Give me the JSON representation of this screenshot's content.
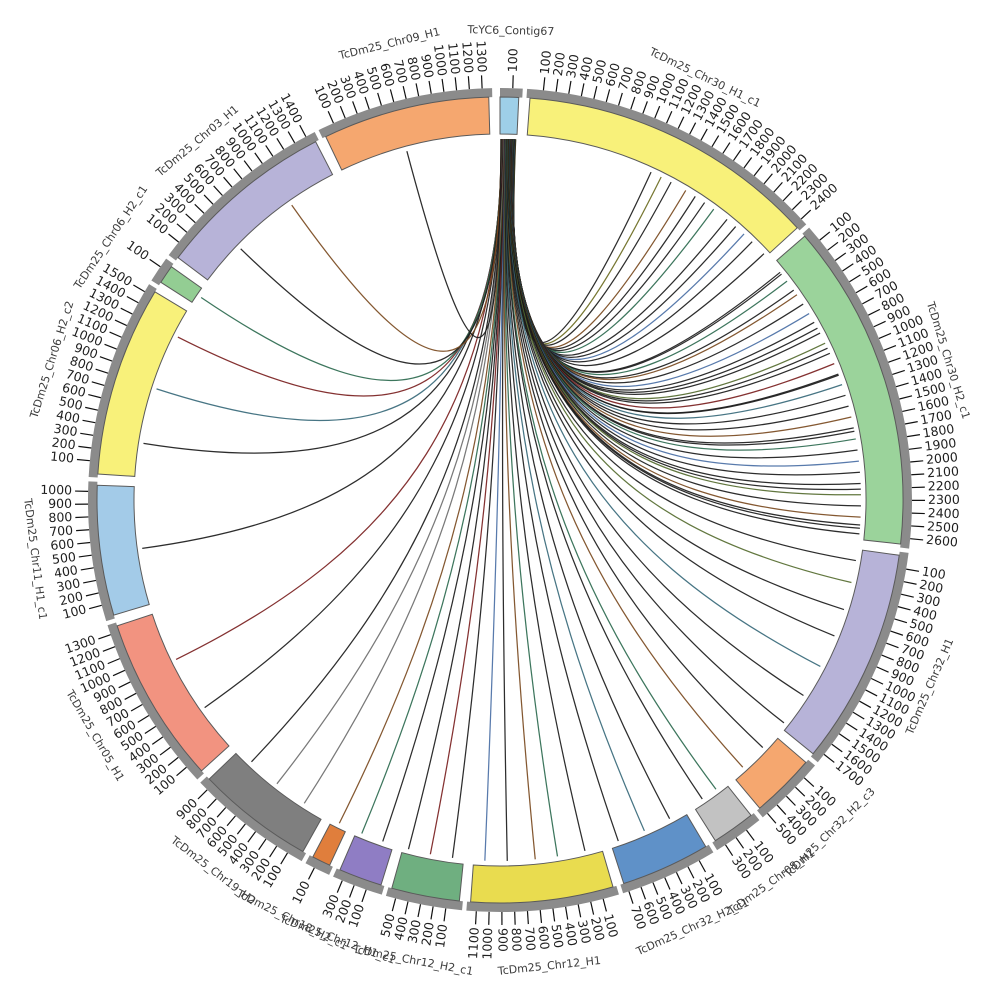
{
  "figure": {
    "description": "Circos-style synteny plot linking contig TcYC6_Contig67 to T. cruzi chromosome segments"
  },
  "chart_data": {
    "type": "circos-chord",
    "source_segment": "TcYC6_Contig67",
    "tick_step": 100,
    "link_default_color": "#1b1b1b",
    "segments": [
      {
        "name": "TcYC6_Contig67",
        "color": "#9ECFE8",
        "length": 150
      },
      {
        "name": "TcDm25_Chr30_H1_c1",
        "color": "#F8F17A",
        "length": 2430
      },
      {
        "name": "TcDm25_Chr30_H2_c1",
        "color": "#9BD39B",
        "length": 2650
      },
      {
        "name": "TcDm25_Chr32_H1",
        "color": "#B7B3D8",
        "length": 1750
      },
      {
        "name": "TcDm25_Chr32_H2_c3",
        "color": "#F5A76F",
        "length": 520
      },
      {
        "name": "TcDm25_Chr08_H1",
        "color": "#C2C2C2",
        "length": 350
      },
      {
        "name": "TcDm25_Chr32_H2_c1",
        "color": "#5F91C8",
        "length": 720
      },
      {
        "name": "TcDm25_Chr12_H1",
        "color": "#E9DC4F",
        "length": 1150
      },
      {
        "name": "TcDm25_Chr12_H2_c1",
        "color": "#6FAF80",
        "length": 550
      },
      {
        "name": "TcDm25_Chr12_H1_c1",
        "color": "#8F7DC4",
        "length": 350
      },
      {
        "name": "TcDm25_Chr18_H2_c1",
        "color": "#E07E3C",
        "length": 150
      },
      {
        "name": "TcDm25_Chr19_H2",
        "color": "#7F7F7F",
        "length": 950
      },
      {
        "name": "TcDm25_Chr05_H1",
        "color": "#F29380",
        "length": 1350
      },
      {
        "name": "TcDm25_Chr11_H1_c1",
        "color": "#A3CBE8",
        "length": 1050
      },
      {
        "name": "TcDm25_Chr06_H2_c2",
        "color": "#F8F17A",
        "length": 1540
      },
      {
        "name": "TcDm25_Chr06_H2_c1",
        "color": "#93CD93",
        "length": 150
      },
      {
        "name": "TcDm25_Chr03_H1",
        "color": "#B7B3D8",
        "length": 1450
      },
      {
        "name": "TcDm25_Chr09_H1",
        "color": "#F5A76F",
        "length": 1350
      }
    ],
    "links": [
      [
        1,
        1150
      ],
      [
        1,
        1250,
        "#6b6b1f"
      ],
      [
        1,
        1350
      ],
      [
        1,
        1500,
        "#7a4a1f"
      ],
      [
        1,
        1600
      ],
      [
        1,
        1700
      ],
      [
        1,
        1800,
        "#2d6a4f"
      ],
      [
        1,
        1950
      ],
      [
        1,
        2050
      ],
      [
        1,
        2150,
        "#4a6fa5"
      ],
      [
        1,
        2250
      ],
      [
        1,
        2400
      ],
      [
        2,
        100
      ],
      [
        2,
        120
      ],
      [
        2,
        200,
        "#2d6a4f"
      ],
      [
        2,
        300
      ],
      [
        2,
        350,
        "#7a4a1f"
      ],
      [
        2,
        450
      ],
      [
        2,
        550,
        "#4a6fa5"
      ],
      [
        2,
        640
      ],
      [
        2,
        700
      ],
      [
        2,
        750
      ],
      [
        2,
        850,
        "#556b2f"
      ],
      [
        2,
        900
      ],
      [
        2,
        950
      ],
      [
        2,
        1050,
        "#7a1f1f"
      ],
      [
        2,
        1150
      ],
      [
        2,
        1160
      ],
      [
        2,
        1250,
        "#37697a"
      ],
      [
        2,
        1350
      ],
      [
        2,
        1450
      ],
      [
        2,
        1550,
        "#7a4a1f"
      ],
      [
        2,
        1650
      ],
      [
        2,
        1680
      ],
      [
        2,
        1750,
        "#2d6a4f"
      ],
      [
        2,
        1850
      ],
      [
        2,
        1950,
        "#4a6fa5"
      ],
      [
        2,
        2050
      ],
      [
        2,
        2150
      ],
      [
        2,
        2200
      ],
      [
        2,
        2250,
        "#556b2f"
      ],
      [
        2,
        2350
      ],
      [
        2,
        2450,
        "#7a4a1f"
      ],
      [
        2,
        2520
      ],
      [
        2,
        2550
      ],
      [
        2,
        2600
      ],
      [
        3,
        100
      ],
      [
        3,
        300,
        "#556b2f"
      ],
      [
        3,
        550
      ],
      [
        3,
        800
      ],
      [
        3,
        1100,
        "#37697a"
      ],
      [
        3,
        1400
      ],
      [
        3,
        1700
      ],
      [
        4,
        150
      ],
      [
        4,
        400,
        "#7a4a1f"
      ],
      [
        5,
        100,
        "#2d6a4f"
      ],
      [
        5,
        250
      ],
      [
        6,
        150
      ],
      [
        6,
        400,
        "#37697a"
      ],
      [
        6,
        650
      ],
      [
        7,
        150
      ],
      [
        7,
        400,
        "#2d6a4f"
      ],
      [
        7,
        600,
        "#7a4a1f"
      ],
      [
        7,
        850
      ],
      [
        7,
        1050,
        "#4a6fa5"
      ],
      [
        8,
        100
      ],
      [
        8,
        300,
        "#7a1f1f"
      ],
      [
        8,
        500
      ],
      [
        9,
        100
      ],
      [
        9,
        300,
        "#2d6a4f"
      ],
      [
        10,
        80,
        "#7a4a1f"
      ],
      [
        11,
        200,
        "#6e6e6e"
      ],
      [
        11,
        500,
        "#6e6e6e"
      ],
      [
        11,
        800
      ],
      [
        12,
        400
      ],
      [
        12,
        900,
        "#7a1f1f"
      ],
      [
        13,
        500
      ],
      [
        14,
        300
      ],
      [
        14,
        800,
        "#37697a"
      ],
      [
        14,
        1300,
        "#7a1f1f"
      ],
      [
        15,
        80,
        "#2d6a4f"
      ],
      [
        16,
        400
      ],
      [
        16,
        1000,
        "#7a4a1f"
      ],
      [
        17,
        600
      ]
    ],
    "layout_hints": {
      "tick_band_color": "#8B8B8B",
      "segment_outline": "#5a5a5a",
      "gap_degrees": 1.6,
      "numbering": "clockwise, 100-unit ticks, starting at each segment counterclockwise end"
    }
  }
}
